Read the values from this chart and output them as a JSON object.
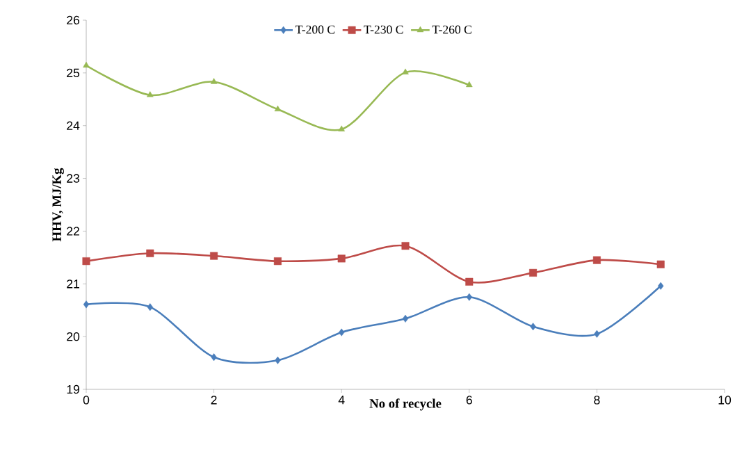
{
  "chart_data": {
    "type": "line",
    "xlabel": "No of recycle",
    "ylabel": "HHV, MJ/Kg",
    "xlim": [
      0,
      10
    ],
    "xticks": [
      0,
      2,
      4,
      6,
      8,
      10
    ],
    "ylim": [
      19,
      26
    ],
    "yticks": [
      19,
      20,
      21,
      22,
      23,
      24,
      25,
      26
    ],
    "grid": false,
    "legend": "top",
    "line_style": "solid",
    "series": [
      {
        "name": "T-200 C",
        "color": "#4a7ebb",
        "marker": "diamond",
        "x": [
          0,
          1,
          2,
          3,
          4,
          5,
          6,
          7,
          8,
          9
        ],
        "values": [
          20.61,
          20.56,
          19.61,
          19.55,
          20.08,
          20.34,
          20.75,
          20.19,
          20.05,
          20.96
        ]
      },
      {
        "name": "T-230 C",
        "color": "#be4b48",
        "marker": "square",
        "x": [
          0,
          1,
          2,
          3,
          4,
          5,
          6,
          7,
          8,
          9
        ],
        "values": [
          21.43,
          21.58,
          21.53,
          21.43,
          21.48,
          21.72,
          21.04,
          21.21,
          21.45,
          21.37
        ]
      },
      {
        "name": "T-260 C",
        "color": "#98b954",
        "marker": "triangle",
        "x": [
          0,
          1,
          2,
          3,
          4,
          5,
          6
        ],
        "values": [
          25.14,
          24.58,
          24.83,
          24.31,
          23.93,
          25.01,
          24.77
        ]
      }
    ]
  }
}
